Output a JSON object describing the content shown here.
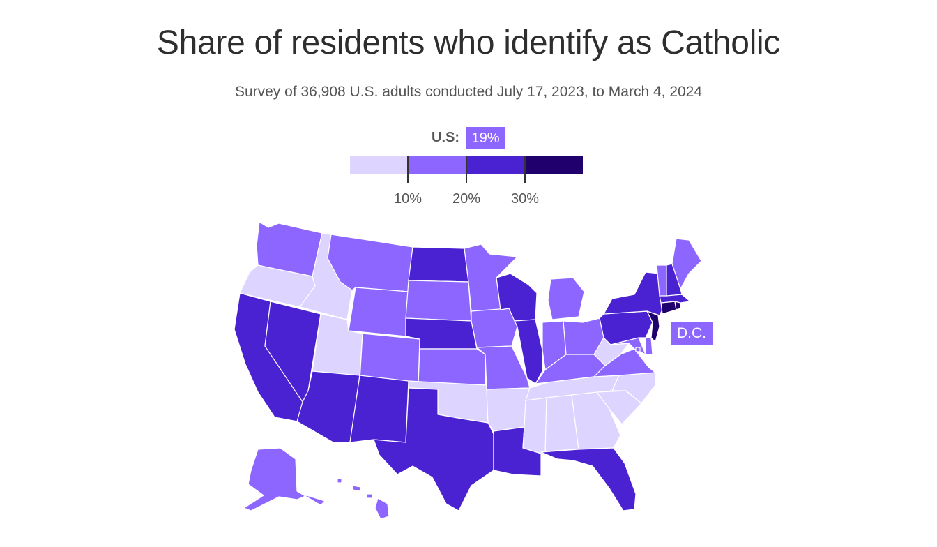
{
  "title": "Share of residents who identify as Catholic",
  "subtitle": "Survey of 36,908 U.S. adults conducted July 17, 2023, to March 4, 2024",
  "legend": {
    "us_label": "U.S:",
    "us_value": "19%",
    "bins": [
      {
        "range": "<10%",
        "color": "#ddd4ff"
      },
      {
        "range": "10–20%",
        "color": "#8d66ff"
      },
      {
        "range": "20–30%",
        "color": "#4b22d1"
      },
      {
        "range": "30%+",
        "color": "#20006d"
      }
    ],
    "ticks": [
      "10%",
      "20%",
      "30%"
    ]
  },
  "dc_label": "D.C.",
  "states": [
    {
      "name": "Washington",
      "bin": 1
    },
    {
      "name": "Oregon",
      "bin": 0
    },
    {
      "name": "California",
      "bin": 2
    },
    {
      "name": "Nevada",
      "bin": 2
    },
    {
      "name": "Idaho",
      "bin": 0
    },
    {
      "name": "Montana",
      "bin": 1
    },
    {
      "name": "Wyoming",
      "bin": 1
    },
    {
      "name": "Utah",
      "bin": 0
    },
    {
      "name": "Colorado",
      "bin": 1
    },
    {
      "name": "Arizona",
      "bin": 2
    },
    {
      "name": "New Mexico",
      "bin": 2
    },
    {
      "name": "North Dakota",
      "bin": 2
    },
    {
      "name": "South Dakota",
      "bin": 1
    },
    {
      "name": "Nebraska",
      "bin": 2
    },
    {
      "name": "Kansas",
      "bin": 1
    },
    {
      "name": "Oklahoma",
      "bin": 0
    },
    {
      "name": "Texas",
      "bin": 2
    },
    {
      "name": "Minnesota",
      "bin": 1
    },
    {
      "name": "Iowa",
      "bin": 1
    },
    {
      "name": "Missouri",
      "bin": 1
    },
    {
      "name": "Arkansas",
      "bin": 0
    },
    {
      "name": "Louisiana",
      "bin": 2
    },
    {
      "name": "Wisconsin",
      "bin": 2
    },
    {
      "name": "Illinois",
      "bin": 2
    },
    {
      "name": "Michigan",
      "bin": 1
    },
    {
      "name": "Indiana",
      "bin": 1
    },
    {
      "name": "Ohio",
      "bin": 1
    },
    {
      "name": "Kentucky",
      "bin": 1
    },
    {
      "name": "Tennessee",
      "bin": 0
    },
    {
      "name": "Mississippi",
      "bin": 0
    },
    {
      "name": "Alabama",
      "bin": 0
    },
    {
      "name": "Georgia",
      "bin": 0
    },
    {
      "name": "Florida",
      "bin": 2
    },
    {
      "name": "South Carolina",
      "bin": 0
    },
    {
      "name": "North Carolina",
      "bin": 0
    },
    {
      "name": "Virginia",
      "bin": 1
    },
    {
      "name": "West Virginia",
      "bin": 0
    },
    {
      "name": "Maryland",
      "bin": 1
    },
    {
      "name": "Delaware",
      "bin": 1
    },
    {
      "name": "Pennsylvania",
      "bin": 2
    },
    {
      "name": "New Jersey",
      "bin": 3
    },
    {
      "name": "New York",
      "bin": 2
    },
    {
      "name": "Connecticut",
      "bin": 3
    },
    {
      "name": "Rhode Island",
      "bin": 3
    },
    {
      "name": "Massachusetts",
      "bin": 2
    },
    {
      "name": "Vermont",
      "bin": 1
    },
    {
      "name": "New Hampshire",
      "bin": 2
    },
    {
      "name": "Maine",
      "bin": 1
    },
    {
      "name": "Alaska",
      "bin": 1
    },
    {
      "name": "Hawaii",
      "bin": 1
    },
    {
      "name": "District of Columbia",
      "bin": 1
    }
  ]
}
